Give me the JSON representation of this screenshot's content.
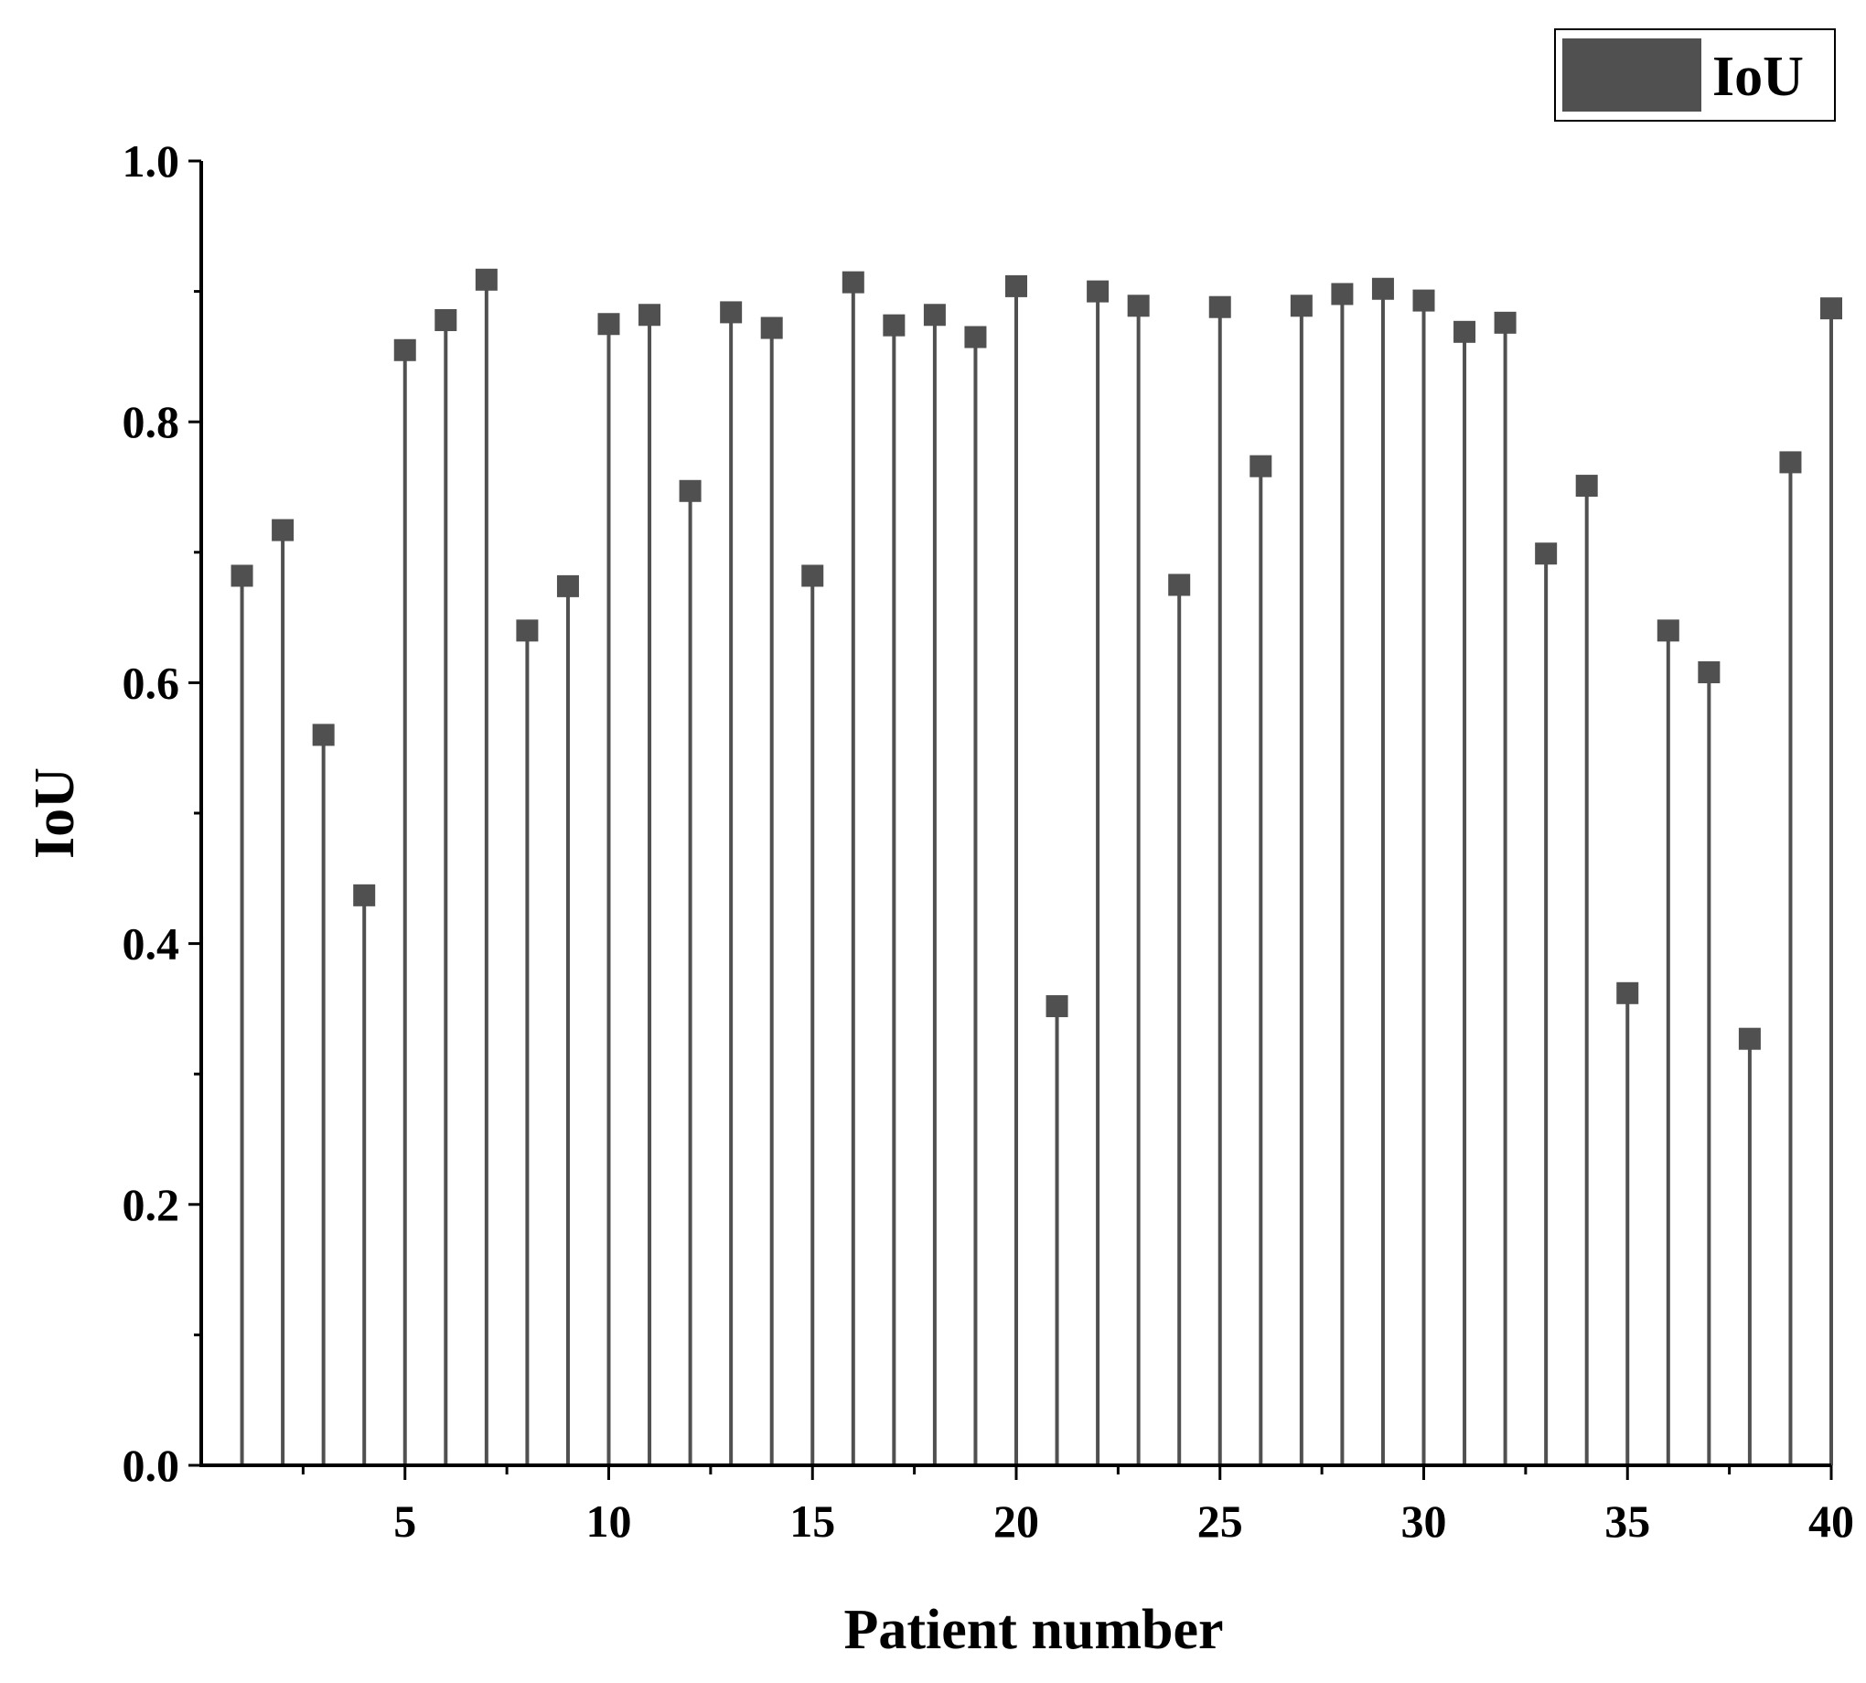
{
  "chart_data": {
    "type": "scatter",
    "style": "stem",
    "xlabel": "Patient number",
    "ylabel": "IoU",
    "xlim": [
      0,
      40
    ],
    "ylim": [
      0,
      1.0
    ],
    "x_ticks": [
      5,
      10,
      15,
      20,
      25,
      30,
      35,
      40
    ],
    "y_ticks": [
      0.0,
      0.2,
      0.4,
      0.6,
      0.8,
      1.0
    ],
    "y_tick_labels": [
      "0.0",
      "0.2",
      "0.4",
      "0.6",
      "0.8",
      "1.0"
    ],
    "grid": false,
    "legend": {
      "position": "top-right"
    },
    "series": [
      {
        "name": "IoU",
        "color": "#505050",
        "x": [
          1,
          2,
          3,
          4,
          5,
          6,
          7,
          8,
          9,
          10,
          11,
          12,
          13,
          14,
          15,
          16,
          17,
          18,
          19,
          20,
          21,
          22,
          23,
          24,
          25,
          26,
          27,
          28,
          29,
          30,
          31,
          32,
          33,
          34,
          35,
          36,
          37,
          38,
          39,
          40
        ],
        "values": [
          0.682,
          0.717,
          0.56,
          0.437,
          0.855,
          0.878,
          0.909,
          0.64,
          0.674,
          0.875,
          0.882,
          0.747,
          0.884,
          0.872,
          0.682,
          0.907,
          0.874,
          0.882,
          0.865,
          0.904,
          0.352,
          0.9,
          0.889,
          0.675,
          0.888,
          0.766,
          0.889,
          0.898,
          0.902,
          0.893,
          0.869,
          0.876,
          0.699,
          0.751,
          0.362,
          0.64,
          0.608,
          0.327,
          0.769,
          0.887
        ]
      }
    ]
  }
}
